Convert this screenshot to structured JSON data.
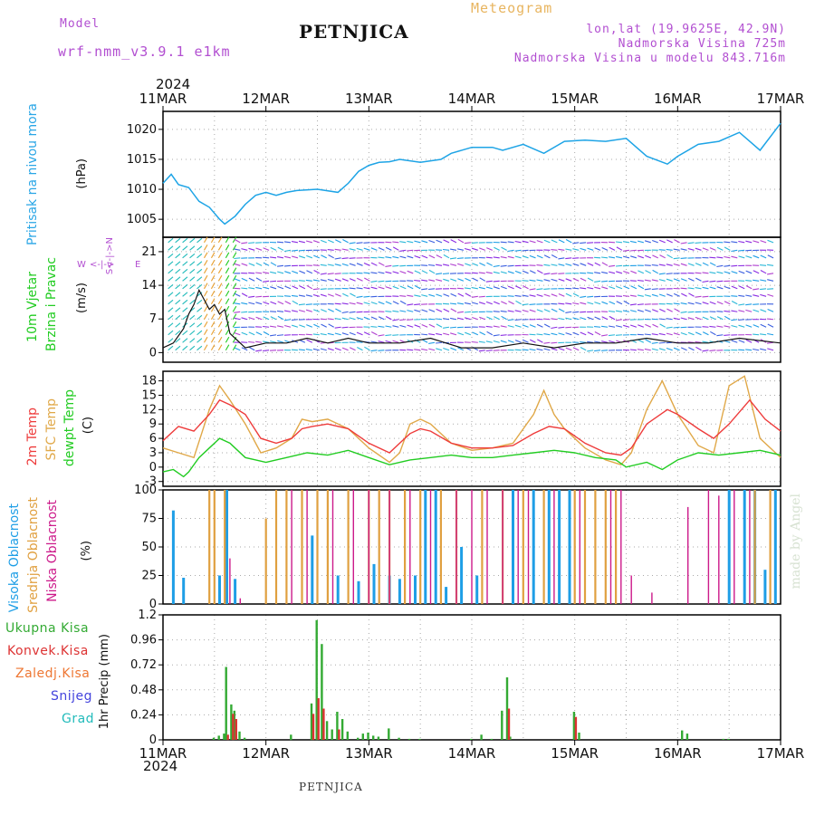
{
  "header": {
    "model_label": "Model",
    "model_name": "wrf-nmm_v3.9.1 e1km",
    "station": "PETNJICA",
    "meteogram": "Meteogram",
    "lonlat": "lon,lat (19.9625E, 42.9N)",
    "elevation": "Nadmorska Visina 725m",
    "model_elevation": "Nadmorska Visina u modelu 843.716m",
    "year_top": "2024",
    "year_bottom": "2024",
    "footer_station": "PETNJICA",
    "credit": "made by Angel"
  },
  "colors": {
    "pressure": "#1ea4e6",
    "temp2m": "#ee3b3b",
    "sfc": "#e0a848",
    "dew": "#22cc22",
    "high_cloud": "#1e9ee6",
    "mid_cloud": "#e0a040",
    "low_cloud": "#cc1a8a",
    "precip_total": "#33aa33",
    "precip_conv": "#dd3333",
    "precip_frz": "#ee7733",
    "snow": "#4444dd",
    "hail": "#22bbbb",
    "header_purple": "#b24fd1"
  },
  "panel_labels": {
    "pressure": [
      "Pritisak na nivou mora"
    ],
    "pressure_unit": "(hPa)",
    "wind": [
      "10m Vjetar",
      "Brzina i Pravac"
    ],
    "wind_unit": "(m/s)",
    "wind_compass": [
      "W",
      "<-|->",
      "E",
      "S<-|->N"
    ],
    "temp": [
      "2m Temp",
      "SFC Temp",
      "dewpt Temp"
    ],
    "temp_unit": "(C)",
    "cloud": [
      "Visoka Oblacnost",
      "Srednja Oblacnost",
      "Niska Oblacnost"
    ],
    "cloud_unit": "(%)",
    "precip_unit": "1hr Precip (mm)"
  },
  "precip_legend": [
    "Ukupna Kisa",
    "Konvek.Kisa",
    "Zaledj.Kisa",
    "Snijeg",
    "Grad"
  ],
  "chart_data": [
    {
      "type": "line",
      "name": "pressure",
      "x_ticks": [
        "11MAR",
        "12MAR",
        "13MAR",
        "14MAR",
        "15MAR",
        "16MAR",
        "17MAR"
      ],
      "xlim_days": [
        0,
        6
      ],
      "ylim": [
        1002,
        1023
      ],
      "y_ticks": [
        1005,
        1010,
        1015,
        1020
      ],
      "ylabel": "(hPa)",
      "series": [
        {
          "x": [
            0,
            0.08,
            0.15,
            0.25,
            0.35,
            0.45,
            0.55,
            0.6,
            0.7,
            0.8,
            0.9,
            1.0,
            1.1,
            1.2,
            1.3,
            1.5,
            1.7,
            1.8,
            1.9,
            2.0,
            2.1,
            2.2,
            2.3,
            2.5,
            2.7,
            2.8,
            3.0,
            3.2,
            3.3,
            3.5,
            3.7,
            3.9,
            4.1,
            4.3,
            4.5,
            4.7,
            4.9,
            5.0,
            5.2,
            5.4,
            5.6,
            5.7,
            5.8,
            6.0
          ],
          "y": [
            1011.0,
            1012.5,
            1010.8,
            1010.3,
            1008.0,
            1007.0,
            1005.0,
            1004.2,
            1005.5,
            1007.5,
            1009.0,
            1009.5,
            1009.0,
            1009.5,
            1009.8,
            1010.0,
            1009.5,
            1011.0,
            1013.0,
            1014.0,
            1014.5,
            1014.6,
            1015.0,
            1014.5,
            1015.0,
            1016.0,
            1017.0,
            1017.0,
            1016.5,
            1017.5,
            1016.0,
            1018.0,
            1018.2,
            1018.0,
            1018.5,
            1015.5,
            1014.2,
            1015.5,
            1017.5,
            1018.0,
            1019.5,
            1018.0,
            1016.5,
            1021.0
          ]
        }
      ]
    },
    {
      "type": "line",
      "name": "wind",
      "ylim": [
        -2,
        24
      ],
      "y_ticks": [
        0,
        7,
        14,
        21
      ],
      "ylabel": "(m/s)",
      "series": [
        {
          "name": "speed",
          "x": [
            0,
            0.1,
            0.2,
            0.25,
            0.3,
            0.35,
            0.4,
            0.45,
            0.5,
            0.55,
            0.6,
            0.65,
            0.7,
            0.8,
            1.0,
            1.2,
            1.4,
            1.6,
            1.8,
            2.0,
            2.3,
            2.6,
            2.9,
            3.2,
            3.5,
            3.8,
            4.1,
            4.4,
            4.7,
            5.0,
            5.3,
            5.6,
            6.0
          ],
          "y": [
            1,
            2,
            5,
            8,
            10,
            13,
            11,
            9,
            10,
            8,
            9,
            4,
            3,
            1,
            2,
            2,
            3,
            2,
            3,
            2,
            2,
            3,
            1,
            1,
            2,
            1,
            2,
            2,
            3,
            2,
            2,
            3,
            2
          ]
        }
      ]
    },
    {
      "type": "line",
      "name": "temperature",
      "ylim": [
        -4,
        20
      ],
      "y_ticks": [
        -3,
        0,
        3,
        6,
        9,
        12,
        15,
        18
      ],
      "ylabel": "(C)",
      "series": [
        {
          "name": "2m Temp",
          "x": [
            0,
            0.15,
            0.3,
            0.45,
            0.55,
            0.65,
            0.8,
            0.95,
            1.1,
            1.25,
            1.35,
            1.45,
            1.6,
            1.8,
            2.0,
            2.2,
            2.3,
            2.4,
            2.5,
            2.6,
            2.8,
            3.0,
            3.2,
            3.4,
            3.6,
            3.75,
            3.9,
            4.1,
            4.3,
            4.45,
            4.55,
            4.7,
            4.9,
            5.0,
            5.2,
            5.35,
            5.5,
            5.7,
            5.85,
            6.0
          ],
          "y": [
            5.5,
            8.5,
            7.5,
            11,
            14,
            13,
            11,
            6,
            5,
            6,
            8,
            8.5,
            9,
            8,
            5,
            3,
            5,
            7,
            8,
            7.5,
            5,
            4,
            4,
            4.5,
            7,
            8.5,
            8,
            5,
            3,
            2.5,
            4,
            9,
            12,
            11,
            8,
            6,
            9,
            14,
            10,
            7.5
          ]
        },
        {
          "name": "SFC Temp",
          "x": [
            0,
            0.15,
            0.3,
            0.45,
            0.55,
            0.65,
            0.8,
            0.95,
            1.1,
            1.25,
            1.35,
            1.45,
            1.6,
            1.8,
            2.0,
            2.2,
            2.3,
            2.4,
            2.5,
            2.6,
            2.8,
            3.0,
            3.2,
            3.4,
            3.6,
            3.7,
            3.8,
            3.9,
            4.1,
            4.3,
            4.45,
            4.55,
            4.7,
            4.85,
            5.0,
            5.2,
            5.35,
            5.5,
            5.65,
            5.8,
            6.0
          ],
          "y": [
            4,
            3,
            2,
            12,
            17,
            14,
            9,
            3,
            4,
            6,
            10,
            9.5,
            10,
            8,
            4,
            1,
            3,
            9,
            10,
            9,
            5,
            3.5,
            4,
            5,
            11,
            16,
            11,
            8,
            4,
            1.5,
            0.5,
            3,
            12,
            18,
            11,
            4.5,
            3,
            17,
            19,
            6,
            2
          ]
        },
        {
          "name": "dewpt Temp",
          "x": [
            0,
            0.1,
            0.2,
            0.25,
            0.35,
            0.45,
            0.55,
            0.65,
            0.8,
            1.0,
            1.2,
            1.4,
            1.6,
            1.8,
            2.0,
            2.2,
            2.4,
            2.6,
            2.8,
            3.0,
            3.2,
            3.4,
            3.6,
            3.8,
            4.0,
            4.2,
            4.4,
            4.5,
            4.7,
            4.85,
            5.0,
            5.2,
            5.4,
            5.6,
            5.8,
            6.0
          ],
          "y": [
            -1,
            -0.5,
            -2,
            -1,
            2,
            4,
            6,
            5,
            2,
            1,
            2,
            3,
            2.5,
            3.5,
            2,
            0.5,
            1.5,
            2,
            2.5,
            2,
            2,
            2.5,
            3,
            3.5,
            3,
            2,
            1.5,
            0,
            1,
            -0.5,
            1.5,
            3,
            2.5,
            3,
            3.5,
            2.5
          ]
        }
      ]
    },
    {
      "type": "bar",
      "name": "cloud_cover",
      "ylim": [
        0,
        100
      ],
      "y_ticks": [
        0,
        25,
        50,
        75,
        100
      ],
      "ylabel": "(%)",
      "series": [
        {
          "name": "Visoka Oblacnost",
          "x": [
            0.1,
            0.2,
            0.55,
            0.62,
            0.7,
            1.45,
            1.7,
            1.9,
            2.05,
            2.2,
            2.3,
            2.45,
            2.55,
            2.65,
            2.75,
            2.9,
            3.05,
            3.4,
            3.6,
            3.75,
            3.85,
            3.95,
            5.5,
            5.65,
            5.75,
            5.85,
            5.95
          ],
          "values": [
            82,
            23,
            25,
            100,
            22,
            60,
            25,
            20,
            35,
            25,
            22,
            25,
            100,
            100,
            15,
            50,
            25,
            100,
            100,
            100,
            100,
            100,
            100,
            100,
            100,
            30,
            100
          ]
        },
        {
          "name": "Srednja Oblacnost",
          "x": [
            0.45,
            0.5,
            0.6,
            1.0,
            1.1,
            1.2,
            1.35,
            1.5,
            1.6,
            1.8,
            2.0,
            2.1,
            2.2,
            2.35,
            2.5,
            2.7,
            2.85,
            3.1,
            3.3,
            3.5,
            3.7,
            4.0,
            4.1,
            4.2,
            4.3,
            4.4,
            5.75,
            5.9
          ],
          "values": [
            100,
            100,
            100,
            75,
            100,
            100,
            100,
            100,
            100,
            100,
            100,
            100,
            100,
            100,
            100,
            100,
            100,
            100,
            100,
            100,
            100,
            100,
            100,
            100,
            100,
            100,
            100,
            100
          ]
        },
        {
          "name": "Niska Oblacnost",
          "x": [
            0.65,
            0.75,
            1.25,
            1.4,
            1.65,
            1.85,
            2.0,
            2.2,
            2.4,
            2.6,
            2.85,
            3.0,
            3.15,
            3.3,
            3.45,
            3.55,
            3.8,
            4.05,
            4.35,
            4.45,
            4.55,
            4.75,
            5.1,
            5.3,
            5.4,
            5.55,
            5.7
          ],
          "values": [
            40,
            5,
            100,
            100,
            100,
            100,
            100,
            100,
            100,
            100,
            100,
            100,
            100,
            100,
            100,
            100,
            100,
            100,
            100,
            100,
            25,
            10,
            85,
            100,
            95,
            100,
            100
          ]
        }
      ]
    },
    {
      "type": "bar",
      "name": "precipitation",
      "ylim": [
        0,
        1.2
      ],
      "y_ticks": [
        0,
        0.24,
        0.48,
        0.72,
        0.96,
        1.2
      ],
      "ylabel": "1hr Precip (mm)",
      "series": [
        {
          "name": "Ukupna Kisa",
          "x": [
            0.5,
            0.55,
            0.6,
            0.62,
            0.67,
            0.7,
            0.75,
            0.8,
            1.25,
            1.45,
            1.5,
            1.55,
            1.6,
            1.65,
            1.7,
            1.75,
            1.8,
            1.9,
            1.95,
            2.0,
            2.05,
            2.1,
            2.2,
            2.3,
            2.4,
            2.5,
            3.0,
            3.1,
            3.2,
            3.3,
            3.35,
            3.38,
            4.0,
            4.05,
            5.05,
            5.1,
            5.45,
            5.5
          ],
          "values": [
            0.02,
            0.04,
            0.06,
            0.7,
            0.34,
            0.28,
            0.08,
            0.02,
            0.05,
            0.35,
            1.15,
            0.92,
            0.18,
            0.1,
            0.27,
            0.2,
            0.08,
            0.02,
            0.06,
            0.07,
            0.04,
            0.03,
            0.11,
            0.02,
            0.01,
            0.01,
            0.01,
            0.05,
            0.01,
            0.28,
            0.6,
            0.03,
            0.27,
            0.07,
            0.09,
            0.06,
            0.01,
            0.01
          ]
        },
        {
          "name": "Konvek.Kisa",
          "x": [
            0.62,
            0.67,
            0.7,
            1.45,
            1.5,
            1.55,
            1.7,
            3.35,
            4.0
          ],
          "values": [
            0.05,
            0.25,
            0.2,
            0.25,
            0.4,
            0.3,
            0.1,
            0.3,
            0.22
          ]
        }
      ]
    }
  ]
}
